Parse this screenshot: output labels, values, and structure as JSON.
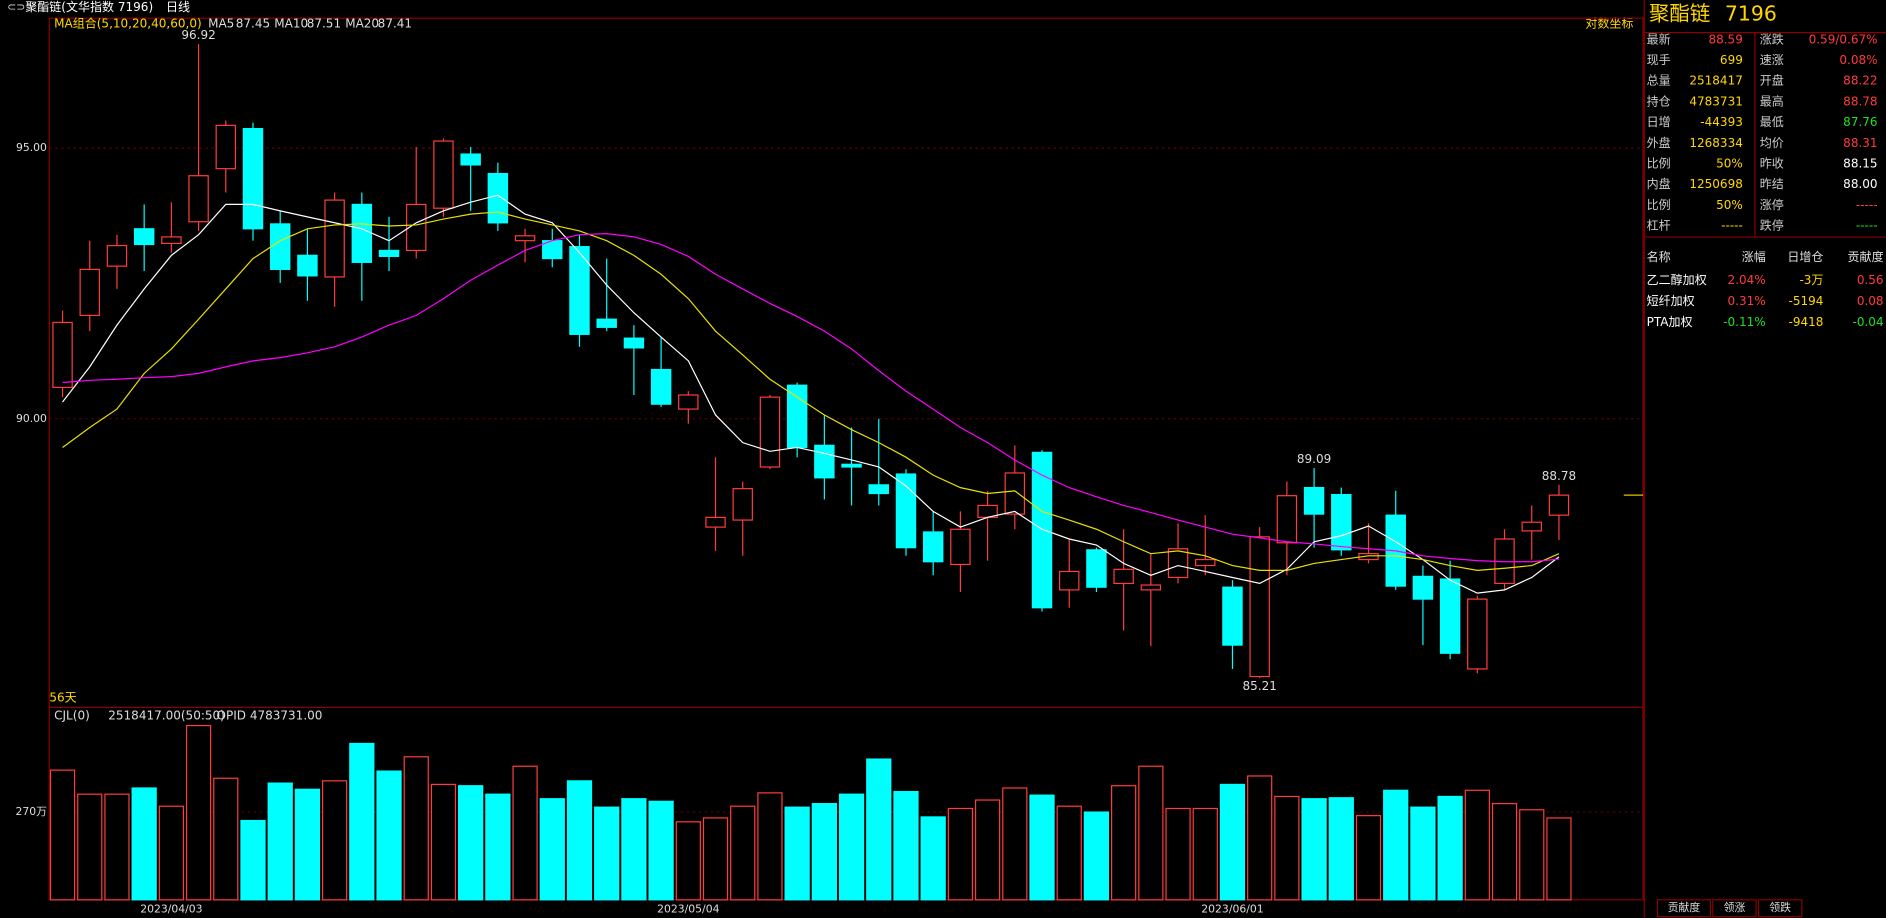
{
  "header": {
    "title": "聚酯链(文华指数 7196)",
    "period": "日线",
    "log_toggle": "对数坐标"
  },
  "quote": {
    "name": "聚酯链",
    "code": "7196",
    "rows": [
      [
        "最新",
        "88.59",
        "涨跌",
        "0.59/0.67%"
      ],
      [
        "现手",
        "699",
        "速涨",
        "0.08%"
      ],
      [
        "总量",
        "2518417",
        "开盘",
        "88.22"
      ],
      [
        "持仓",
        "4783731",
        "最高",
        "88.78"
      ],
      [
        "日增",
        "-44393",
        "最低",
        "87.76"
      ],
      [
        "外盘",
        "1268334",
        "均价",
        "88.31"
      ],
      [
        "比例",
        "50%",
        "昨收",
        "88.15"
      ],
      [
        "内盘",
        "1250698",
        "昨结",
        "88.00"
      ],
      [
        "比例",
        "50%",
        "涨停",
        "-----"
      ],
      [
        "杠杆",
        "-----",
        "跌停",
        "-----"
      ]
    ]
  },
  "contrib": {
    "header": [
      "名称",
      "涨幅",
      "日增仓",
      "贡献度"
    ],
    "rows": [
      [
        "乙二醇加权",
        "2.04%",
        "-3万",
        "0.56"
      ],
      [
        "短纤加权",
        "0.31%",
        "-5194",
        "0.08"
      ],
      [
        "PTA加权",
        "-0.11%",
        "-9418",
        "-0.04"
      ]
    ]
  },
  "tabs": [
    "贡献度",
    "领涨",
    "领跌"
  ],
  "chart_data": [
    {
      "type": "candlestick",
      "legend_title": "MA组合(5,10,20,40,60,0)",
      "span_label": "56天",
      "up_color": "#ff3c3c",
      "down_color": "#00ffff",
      "categories": [
        null,
        null,
        null,
        null,
        "2023/04/03",
        null,
        null,
        null,
        null,
        null,
        null,
        null,
        null,
        null,
        null,
        null,
        null,
        null,
        null,
        null,
        null,
        null,
        null,
        "2023/05/04",
        null,
        null,
        null,
        null,
        null,
        null,
        null,
        null,
        null,
        null,
        null,
        null,
        null,
        null,
        null,
        null,
        null,
        null,
        null,
        "2023/06/01",
        null,
        null,
        null,
        null,
        null,
        null,
        null,
        null,
        null,
        null,
        null,
        null
      ],
      "open": [
        90.58,
        91.91,
        92.82,
        93.51,
        93.24,
        93.64,
        94.62,
        95.36,
        93.6,
        93.02,
        92.62,
        93.96,
        93.11,
        93.11,
        93.89,
        94.89,
        94.53,
        93.29,
        93.29,
        93.18,
        91.84,
        91.49,
        90.91,
        90.18,
        88.0,
        88.13,
        89.11,
        90.62,
        89.51,
        89.16,
        88.78,
        88.98,
        87.91,
        87.31,
        88.18,
        88.24,
        89.38,
        86.84,
        87.58,
        86.96,
        86.84,
        87.07,
        87.29,
        86.89,
        85.24,
        87.71,
        88.73,
        88.6,
        87.4,
        88.22,
        87.09,
        87.04,
        85.38,
        86.96,
        87.93,
        88.22
      ],
      "high": [
        92.0,
        93.29,
        93.4,
        93.96,
        94.0,
        96.92,
        95.51,
        95.47,
        93.84,
        93.51,
        94.18,
        94.18,
        93.73,
        95.02,
        95.18,
        95.02,
        94.73,
        93.51,
        93.51,
        93.4,
        92.96,
        91.73,
        91.51,
        90.51,
        89.29,
        88.84,
        90.44,
        90.67,
        90.07,
        89.84,
        90.0,
        89.07,
        88.29,
        88.29,
        88.67,
        89.51,
        89.42,
        87.78,
        87.62,
        87.96,
        87.51,
        88.07,
        88.22,
        87.02,
        88.0,
        88.84,
        89.09,
        88.73,
        88.07,
        88.67,
        87.29,
        87.38,
        86.73,
        87.96,
        88.4,
        88.78
      ],
      "low": [
        90.4,
        91.62,
        92.4,
        92.73,
        93.07,
        93.47,
        94.18,
        93.29,
        92.51,
        92.18,
        92.07,
        92.18,
        92.73,
        92.96,
        93.73,
        93.84,
        93.47,
        92.89,
        92.8,
        91.33,
        91.62,
        90.44,
        90.22,
        89.91,
        87.56,
        87.47,
        89.07,
        89.29,
        88.51,
        88.4,
        88.4,
        87.47,
        87.11,
        86.8,
        87.38,
        87.96,
        86.44,
        86.51,
        86.8,
        86.09,
        85.8,
        86.96,
        87.11,
        85.38,
        85.21,
        87.11,
        87.62,
        87.47,
        87.33,
        86.84,
        85.82,
        85.56,
        85.3,
        86.84,
        87.4,
        87.76
      ],
      "close": [
        91.78,
        92.76,
        93.2,
        93.22,
        93.36,
        94.49,
        95.42,
        93.51,
        92.76,
        92.64,
        94.04,
        92.89,
        93.0,
        93.96,
        95.13,
        94.69,
        93.62,
        93.38,
        92.96,
        91.56,
        91.69,
        91.31,
        90.27,
        90.44,
        88.18,
        88.71,
        90.4,
        89.47,
        88.91,
        89.11,
        88.62,
        87.62,
        87.36,
        87.96,
        88.4,
        89.0,
        86.51,
        87.18,
        86.89,
        87.22,
        86.93,
        87.6,
        87.4,
        85.82,
        87.82,
        88.58,
        88.24,
        87.58,
        87.51,
        86.91,
        86.67,
        85.67,
        86.67,
        87.78,
        88.09,
        88.59
      ],
      "series": [
        {
          "name": "MA5",
          "color": "#ffffff",
          "values": [
            90.31,
            90.96,
            91.73,
            92.4,
            93.02,
            93.4,
            93.96,
            93.96,
            93.84,
            93.73,
            93.62,
            93.51,
            93.29,
            93.62,
            93.84,
            94.0,
            94.13,
            93.78,
            93.62,
            93.07,
            92.47,
            91.96,
            91.51,
            91.07,
            90.07,
            89.56,
            89.4,
            89.47,
            89.36,
            89.24,
            89.11,
            88.76,
            88.29,
            88.0,
            88.18,
            88.29,
            87.96,
            87.78,
            87.67,
            87.33,
            87.11,
            87.29,
            87.18,
            87.07,
            86.96,
            87.22,
            87.73,
            87.84,
            88.02,
            87.73,
            87.4,
            87.02,
            86.78,
            86.84,
            87.07,
            87.45
          ]
        },
        {
          "name": "MA10",
          "color": "#e8e000",
          "values": [
            89.47,
            89.84,
            90.18,
            90.84,
            91.29,
            91.84,
            92.4,
            92.96,
            93.29,
            93.51,
            93.58,
            93.6,
            93.56,
            93.58,
            93.69,
            93.78,
            93.82,
            93.69,
            93.58,
            93.47,
            93.29,
            93.02,
            92.67,
            92.22,
            91.62,
            91.18,
            90.73,
            90.4,
            90.07,
            89.8,
            89.56,
            89.29,
            88.96,
            88.73,
            88.62,
            88.67,
            88.29,
            88.13,
            87.96,
            87.73,
            87.51,
            87.56,
            87.47,
            87.29,
            87.2,
            87.2,
            87.33,
            87.4,
            87.47,
            87.47,
            87.4,
            87.29,
            87.2,
            87.24,
            87.29,
            87.51
          ]
        },
        {
          "name": "MA20",
          "color": "#ff00ff",
          "values": [
            90.67,
            90.71,
            90.73,
            90.76,
            90.78,
            90.84,
            90.96,
            91.07,
            91.13,
            91.22,
            91.33,
            91.51,
            91.73,
            91.91,
            92.22,
            92.56,
            92.84,
            93.11,
            93.29,
            93.4,
            93.42,
            93.36,
            93.22,
            93.0,
            92.67,
            92.4,
            92.13,
            91.89,
            91.62,
            91.29,
            90.89,
            90.51,
            90.18,
            89.84,
            89.56,
            89.24,
            88.96,
            88.73,
            88.56,
            88.4,
            88.27,
            88.13,
            88.0,
            87.87,
            87.8,
            87.73,
            87.69,
            87.64,
            87.6,
            87.56,
            87.47,
            87.42,
            87.38,
            87.36,
            87.36,
            87.41
          ]
        }
      ],
      "ylim": [
        84.67,
        97.4
      ],
      "yticks": [
        {
          "value": 90,
          "label": "90.00"
        },
        {
          "value": 95,
          "label": "95.00"
        }
      ],
      "grid": true
    },
    {
      "type": "bar",
      "legend": [
        "CJL(0)",
        "2518417.00(50:50)",
        "OPID 4783731.00"
      ],
      "values": [
        399,
        325,
        325,
        344,
        288,
        536,
        374,
        244,
        359,
        340,
        366,
        481,
        396,
        440,
        355,
        351,
        325,
        411,
        311,
        366,
        285,
        311,
        303,
        240,
        252,
        288,
        329,
        285,
        296,
        325,
        433,
        333,
        255,
        281,
        307,
        344,
        322,
        288,
        270,
        351,
        411,
        281,
        281,
        355,
        381,
        318,
        311,
        314,
        259,
        337,
        285,
        318,
        337,
        296,
        277,
        251.8417
      ],
      "ylim": [
        0,
        592
      ],
      "yticks": [
        {
          "value": 270,
          "label": "270万"
        }
      ],
      "grid": true
    }
  ]
}
